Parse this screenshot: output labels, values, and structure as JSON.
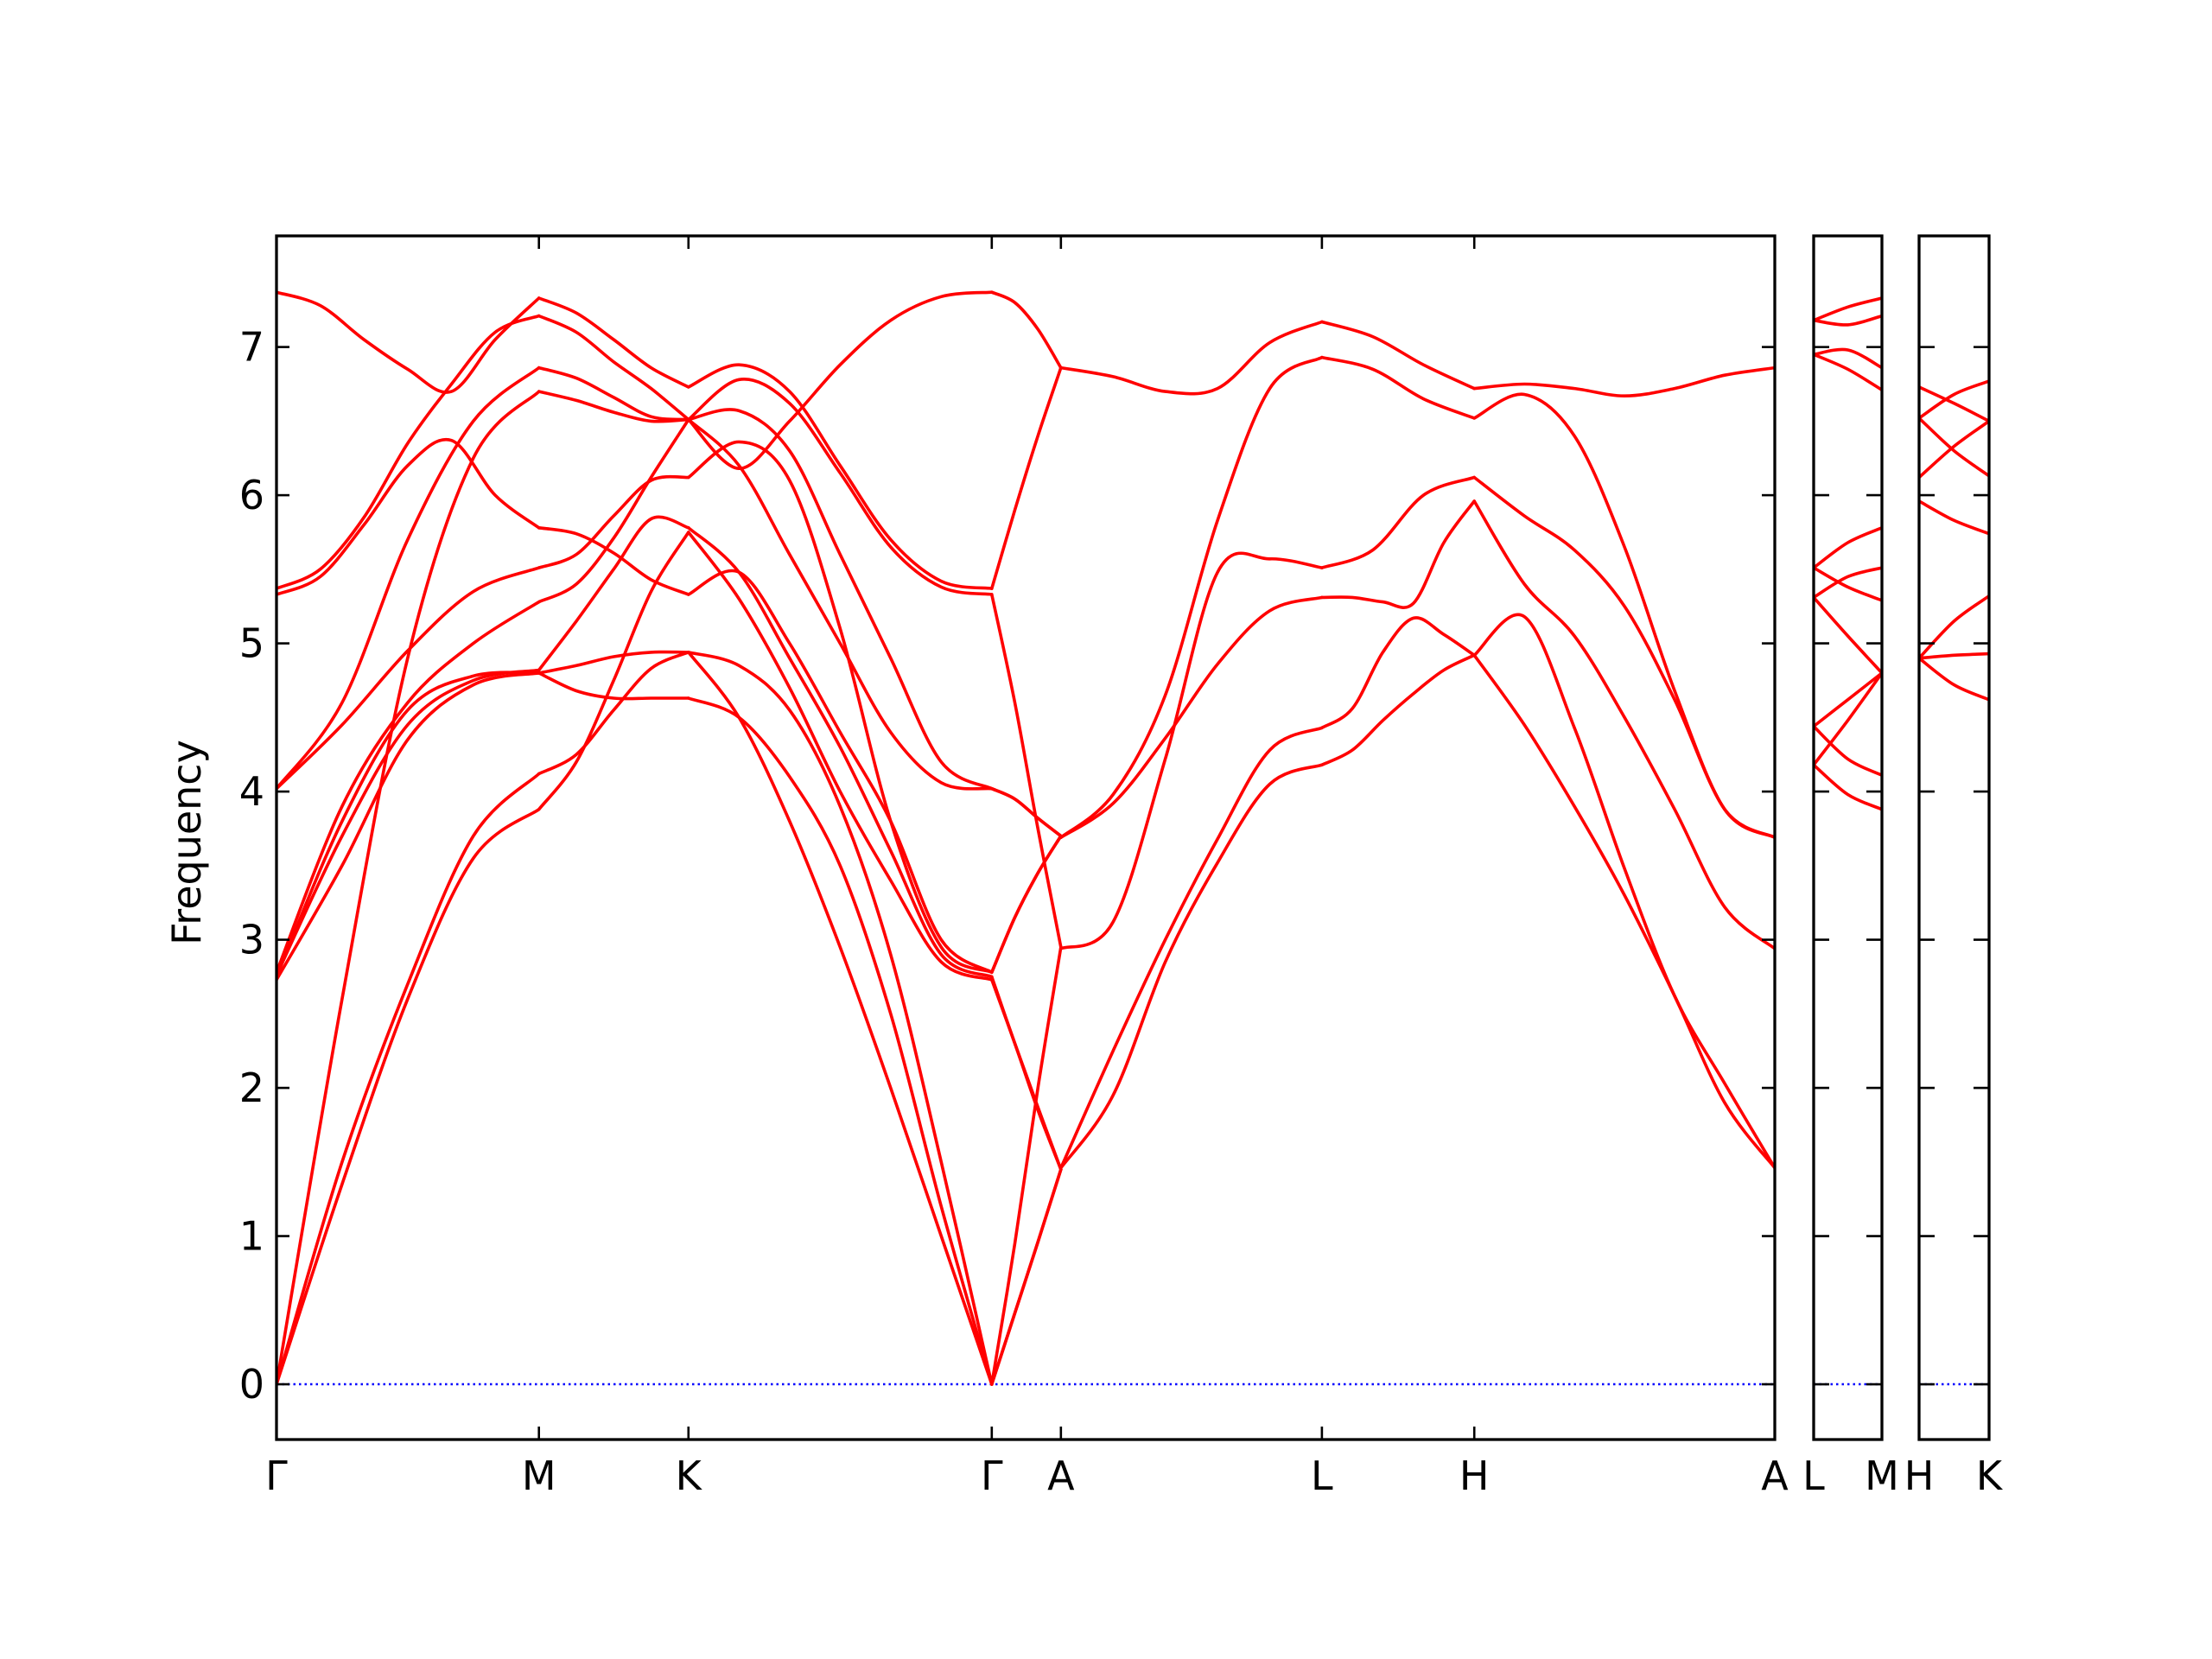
{
  "chart_data": {
    "type": "line",
    "title": "",
    "ylabel": "Frequency",
    "xlabel": "",
    "ylim": [
      -0.373,
      7.75
    ],
    "yticks": [
      0,
      1,
      2,
      3,
      4,
      5,
      6,
      7
    ],
    "ytick_labels": [
      "0",
      "1",
      "2",
      "3",
      "4",
      "5",
      "6",
      "7"
    ],
    "grid": false,
    "line_color": "#ff0000",
    "zero_line_color": "#0000ff",
    "panels": [
      {
        "name": "main",
        "xlim": [
          0,
          10.62
        ],
        "ticks": [
          {
            "label": "Γ",
            "x": 0
          },
          {
            "label": "M",
            "x": 1.86
          },
          {
            "label": "K",
            "x": 2.92
          },
          {
            "label": "Γ",
            "x": 5.07
          },
          {
            "label": "A",
            "x": 5.56
          },
          {
            "label": "L",
            "x": 7.41
          },
          {
            "label": "H",
            "x": 8.49
          },
          {
            "label": "A",
            "x": 10.62
          }
        ],
        "segments": [
          {
            "path": "Γ-M",
            "x": [
              0,
              1.86
            ],
            "bands": [
              [
                0,
                1.35,
                2.6,
                3.55,
                3.88
              ],
              [
                0,
                1.5,
                2.7,
                3.7,
                4.12
              ],
              [
                0,
                2.6,
                4.9,
                6.25,
                6.7
              ],
              [
                2.73,
                3.5,
                4.35,
                4.72,
                4.8
              ],
              [
                2.75,
                3.8,
                4.55,
                4.78,
                4.8
              ],
              [
                2.76,
                3.7,
                4.45,
                4.75,
                4.82
              ],
              [
                2.78,
                3.9,
                4.6,
                5.0,
                5.28
              ],
              [
                4.02,
                4.45,
                4.95,
                5.35,
                5.51
              ],
              [
                4.02,
                4.6,
                5.7,
                6.5,
                6.86
              ],
              [
                5.33,
                5.45,
                5.8,
                6.2,
                6.37,
                6.0,
                5.78
              ],
              [
                5.37,
                5.5,
                5.85,
                6.35,
                6.75,
                7.1,
                7.21
              ],
              [
                7.37,
                7.28,
                7.05,
                6.85,
                6.7,
                7.05,
                7.33
              ]
            ]
          },
          {
            "path": "M-K",
            "x": [
              1.86,
              2.92
            ],
            "bands": [
              [
                7.33,
                7.23,
                7.05,
                6.86,
                6.73
              ],
              [
                7.21,
                7.1,
                6.9,
                6.72,
                6.51
              ],
              [
                6.86,
                6.79,
                6.66,
                6.53,
                6.51
              ],
              [
                6.7,
                6.64,
                6.56,
                6.5,
                6.51
              ],
              [
                5.78,
                5.74,
                5.61,
                5.43,
                5.33
              ],
              [
                5.51,
                5.6,
                5.86,
                6.1,
                6.12
              ],
              [
                5.28,
                5.4,
                5.71,
                6.12,
                6.51
              ],
              [
                4.8,
                4.85,
                4.91,
                4.94,
                4.94
              ],
              [
                4.8,
                4.68,
                4.63,
                4.63,
                4.63
              ],
              [
                4.82,
                5.15,
                5.5,
                5.84,
                5.78
              ],
              [
                4.12,
                4.25,
                4.55,
                4.83,
                4.94
              ],
              [
                3.88,
                4.2,
                4.75,
                5.35,
                5.75
              ]
            ]
          },
          {
            "path": "K-Γ",
            "x": [
              2.92,
              5.07
            ],
            "bands": [
              [
                6.73,
                6.88,
                6.7,
                6.2,
                5.7,
                5.42,
                5.37
              ],
              [
                6.51,
                6.78,
                6.62,
                6.15,
                5.65,
                5.38,
                5.33
              ],
              [
                6.51,
                6.57,
                6.3,
                5.6,
                4.9,
                4.2,
                4.02
              ],
              [
                6.51,
                6.18,
                6.5,
                6.88,
                7.18,
                7.34,
                7.37
              ],
              [
                6.51,
                6.2,
                5.6,
                5.0,
                4.4,
                4.06,
                4.02
              ],
              [
                6.12,
                6.36,
                6.1,
                5.1,
                3.8,
                2.95,
                2.78
              ],
              [
                5.78,
                5.48,
                4.9,
                4.3,
                3.6,
                2.9,
                2.75
              ],
              [
                5.75,
                5.3,
                4.7,
                4.0,
                3.4,
                2.85,
                2.73
              ],
              [
                5.33,
                5.48,
                5.0,
                4.4,
                3.8,
                3.0,
                2.78
              ],
              [
                4.94,
                4.5,
                3.8,
                2.95,
                2.0,
                1.0,
                0
              ],
              [
                4.94,
                4.85,
                4.55,
                3.9,
                2.9,
                1.5,
                0
              ],
              [
                4.63,
                4.5,
                4.1,
                3.5,
                2.5,
                1.2,
                0
              ]
            ]
          },
          {
            "path": "Γ-A",
            "x": [
              5.07,
              5.56
            ],
            "bands": [
              [
                7.37,
                7.3,
                7.12,
                6.86
              ],
              [
                5.37,
                5.9,
                6.4,
                6.86
              ],
              [
                5.33,
                4.6,
                3.75,
                2.95
              ],
              [
                4.02,
                3.95,
                3.82,
                3.7
              ],
              [
                4.02,
                3.95,
                3.82,
                3.7
              ],
              [
                2.78,
                3.15,
                3.45,
                3.7
              ],
              [
                2.78,
                3.15,
                3.45,
                3.7
              ],
              [
                2.73,
                2.3,
                1.85,
                1.45
              ],
              [
                2.75,
                2.3,
                1.87,
                1.45
              ],
              [
                0,
                0.95,
                2.0,
                2.95
              ],
              [
                0,
                0.48,
                0.96,
                1.45
              ],
              [
                0,
                0.48,
                0.96,
                1.45
              ]
            ]
          },
          {
            "path": "A-L",
            "x": [
              5.56,
              7.41
            ],
            "bands": [
              [
                6.86,
                6.8,
                6.7,
                6.72,
                7.03,
                7.17
              ],
              [
                3.69,
                3.98,
                4.65,
                5.83,
                6.72,
                6.93
              ],
              [
                3.69,
                3.92,
                4.36,
                4.86,
                5.22,
                5.31
              ],
              [
                2.94,
                3.12,
                4.22,
                5.48,
                5.57,
                5.51
              ],
              [
                1.46,
                2.25,
                3.0,
                3.68,
                4.28,
                4.43
              ],
              [
                1.46,
                1.95,
                2.85,
                3.52,
                4.05,
                4.18
              ]
            ]
          },
          {
            "path": "L-H",
            "x": [
              7.41,
              8.49
            ],
            "bands": [
              [
                7.17,
                7.07,
                6.88,
                6.72
              ],
              [
                6.93,
                6.85,
                6.65,
                6.52
              ],
              [
                5.51,
                5.63,
                6.0,
                6.12
              ],
              [
                5.31,
                5.31,
                5.28,
                5.27,
                5.68,
                5.96
              ],
              [
                4.43,
                4.56,
                4.94,
                5.17,
                5.06,
                4.92
              ],
              [
                4.18,
                4.28,
                4.48,
                4.66,
                4.82,
                4.92
              ]
            ]
          },
          {
            "path": "H-A",
            "x": [
              8.49,
              10.62
            ],
            "bands": [
              [
                6.72,
                6.75,
                6.72,
                6.67,
                6.72,
                6.81,
                6.86
              ],
              [
                6.52,
                6.68,
                6.4,
                5.65,
                4.68,
                3.88,
                3.69
              ],
              [
                6.12,
                5.86,
                5.63,
                5.25,
                4.62,
                3.88,
                3.69
              ],
              [
                5.96,
                5.4,
                5.05,
                4.5,
                3.88,
                3.22,
                2.94
              ],
              [
                4.92,
                5.18,
                4.43,
                3.48,
                2.62,
                2.03,
                1.46
              ],
              [
                4.92,
                4.45,
                3.9,
                3.3,
                2.62,
                1.9,
                1.46
              ]
            ]
          }
        ]
      },
      {
        "name": "L-M",
        "xlim": [
          0,
          0.49
        ],
        "ticks": [
          {
            "label": "L",
            "x": 0
          },
          {
            "label": "M",
            "x": 0.49
          }
        ],
        "segments": [
          {
            "path": "L-M",
            "x": [
              0,
              0.49
            ],
            "bands": [
              [
                7.18,
                7.27,
                7.33
              ],
              [
                7.18,
                7.15,
                7.21
              ],
              [
                6.95,
                6.98,
                6.86
              ],
              [
                6.95,
                6.85,
                6.71
              ],
              [
                5.51,
                5.68,
                5.78
              ],
              [
                5.51,
                5.38,
                5.29
              ],
              [
                5.31,
                5.45,
                5.51
              ],
              [
                5.31,
                5.05,
                4.8
              ],
              [
                4.44,
                4.62,
                4.8
              ],
              [
                4.44,
                4.22,
                4.11
              ],
              [
                4.18,
                4.48,
                4.8
              ],
              [
                4.18,
                3.98,
                3.88
              ]
            ]
          }
        ]
      },
      {
        "name": "H-K",
        "xlim": [
          0,
          0.49
        ],
        "ticks": [
          {
            "label": "H",
            "x": 0
          },
          {
            "label": "K",
            "x": 0.49
          }
        ],
        "segments": [
          {
            "path": "H-K",
            "x": [
              0,
              0.49
            ],
            "bands": [
              [
                6.73,
                6.62,
                6.5
              ],
              [
                6.52,
                6.68,
                6.77
              ],
              [
                6.52,
                6.3,
                6.13
              ],
              [
                6.12,
                6.33,
                6.5
              ],
              [
                5.96,
                5.83,
                5.74
              ],
              [
                4.9,
                5.15,
                5.32
              ],
              [
                4.9,
                4.92,
                4.93
              ],
              [
                4.9,
                4.72,
                4.62
              ]
            ]
          }
        ]
      }
    ]
  }
}
